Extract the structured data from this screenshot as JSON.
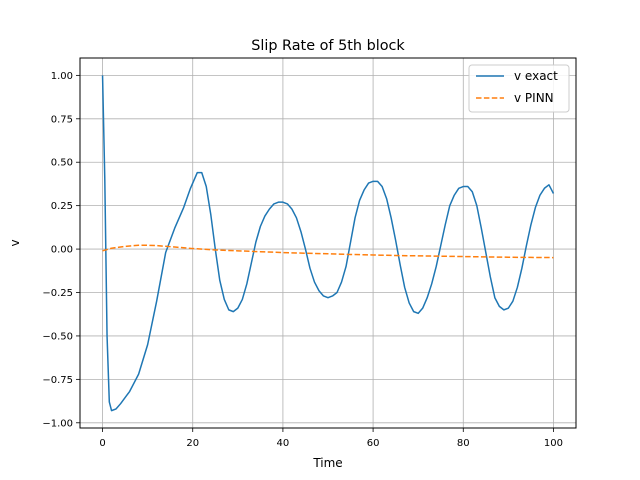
{
  "chart_data": {
    "type": "line",
    "title": "Slip Rate of 5th block",
    "xlabel": "Time",
    "ylabel": "v",
    "xlim": [
      -5,
      105
    ],
    "ylim": [
      -1.03,
      1.1
    ],
    "xticks": [
      0,
      20,
      40,
      60,
      80,
      100
    ],
    "xtick_labels": [
      "0",
      "20",
      "40",
      "60",
      "80",
      "100"
    ],
    "yticks": [
      1.0,
      0.75,
      0.5,
      0.25,
      0.0,
      -0.25,
      -0.5,
      -0.75,
      -1.0
    ],
    "ytick_labels": [
      "1.00",
      "0.75",
      "0.50",
      "0.25",
      "0.00",
      "−0.25",
      "−0.50",
      "−0.75",
      "−1.00"
    ],
    "grid": true,
    "legend_position": "top-right",
    "series": [
      {
        "name": "v exact",
        "style": "solid",
        "color": "#1f77b4",
        "x": [
          0,
          0.5,
          1,
          1.5,
          2,
          3,
          4,
          6,
          8,
          10,
          12,
          14,
          16,
          18,
          19.5,
          21,
          22,
          23,
          24,
          25,
          26,
          27,
          28,
          29,
          30,
          31,
          32,
          33,
          34,
          35,
          36,
          37,
          38,
          39,
          40,
          41,
          42,
          43,
          44,
          45,
          46,
          47,
          48,
          49,
          50,
          51,
          52,
          53,
          54,
          55,
          56,
          57,
          58,
          59,
          60,
          61,
          62,
          63,
          64,
          65,
          66,
          67,
          68,
          69,
          70,
          71,
          72,
          73,
          74,
          75,
          76,
          77,
          78,
          79,
          80,
          81,
          82,
          83,
          84,
          85,
          86,
          87,
          88,
          89,
          90,
          91,
          92,
          93,
          94,
          95,
          96,
          97,
          98,
          99,
          100
        ],
        "y": [
          1.0,
          0.4,
          -0.5,
          -0.88,
          -0.93,
          -0.92,
          -0.89,
          -0.82,
          -0.72,
          -0.55,
          -0.3,
          -0.02,
          0.12,
          0.24,
          0.35,
          0.44,
          0.44,
          0.36,
          0.2,
          0.0,
          -0.18,
          -0.29,
          -0.35,
          -0.36,
          -0.34,
          -0.29,
          -0.2,
          -0.08,
          0.04,
          0.13,
          0.19,
          0.23,
          0.26,
          0.27,
          0.27,
          0.26,
          0.23,
          0.18,
          0.1,
          0.0,
          -0.11,
          -0.19,
          -0.24,
          -0.27,
          -0.28,
          -0.27,
          -0.25,
          -0.19,
          -0.1,
          0.04,
          0.18,
          0.28,
          0.34,
          0.38,
          0.39,
          0.39,
          0.36,
          0.29,
          0.18,
          0.05,
          -0.09,
          -0.22,
          -0.31,
          -0.36,
          -0.37,
          -0.34,
          -0.28,
          -0.2,
          -0.1,
          0.02,
          0.14,
          0.25,
          0.31,
          0.35,
          0.36,
          0.36,
          0.33,
          0.25,
          0.12,
          -0.02,
          -0.16,
          -0.28,
          -0.33,
          -0.35,
          -0.34,
          -0.3,
          -0.22,
          -0.11,
          0.02,
          0.14,
          0.24,
          0.31,
          0.35,
          0.37,
          0.32
        ]
      },
      {
        "name": "v PINN",
        "style": "dashed",
        "color": "#ff7f0e",
        "x": [
          0,
          2,
          4,
          6,
          8,
          10,
          12,
          14,
          16,
          20,
          25,
          30,
          35,
          40,
          45,
          50,
          55,
          60,
          65,
          70,
          75,
          80,
          85,
          90,
          95,
          100
        ],
        "y": [
          -0.01,
          0.005,
          0.012,
          0.018,
          0.022,
          0.022,
          0.02,
          0.016,
          0.012,
          0.003,
          -0.005,
          -0.01,
          -0.015,
          -0.02,
          -0.024,
          -0.027,
          -0.031,
          -0.034,
          -0.037,
          -0.039,
          -0.041,
          -0.043,
          -0.045,
          -0.047,
          -0.048,
          -0.049
        ]
      }
    ]
  }
}
